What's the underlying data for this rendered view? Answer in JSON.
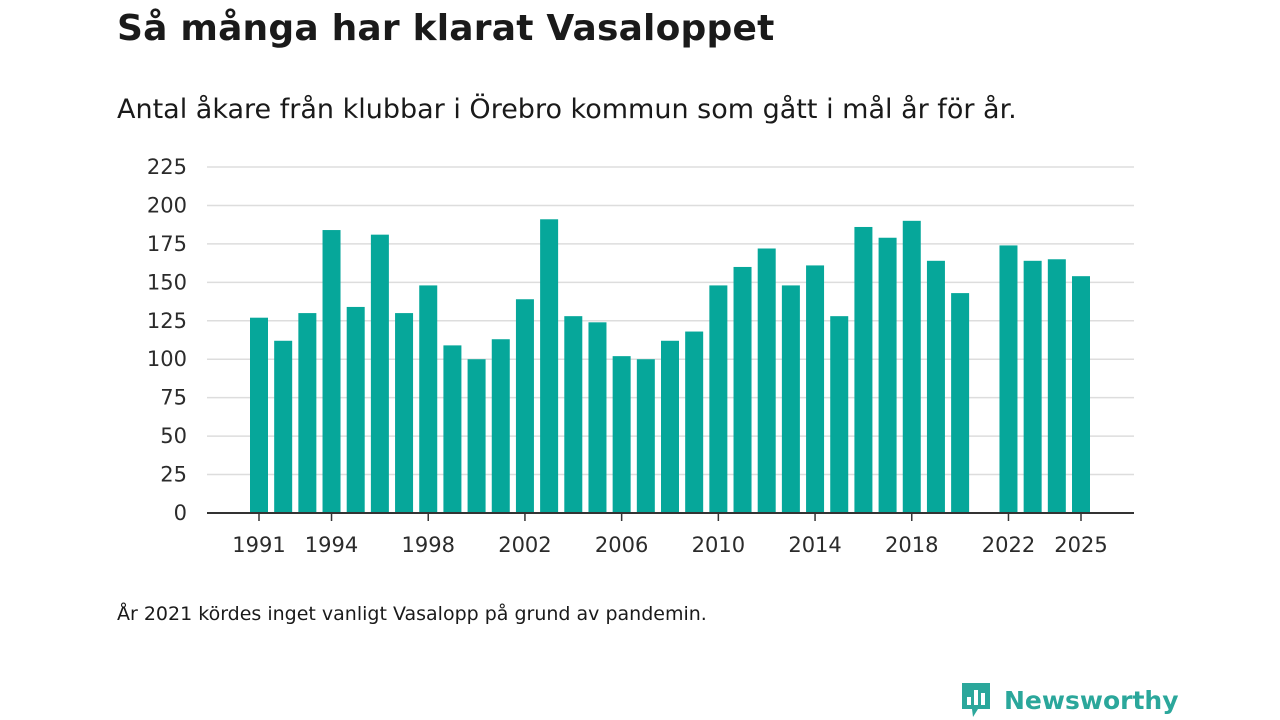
{
  "colors": {
    "bar": "#06a79a",
    "grid": "#dddddd",
    "axis": "#333333",
    "brand": "#2ba79b"
  },
  "header": {
    "title": "Så många har klarat Vasaloppet",
    "subtitle": "Antal åkare från klubbar i Örebro kommun som gått i mål år för år."
  },
  "footer": {
    "note": "År 2021 kördes inget vanligt Vasalopp på grund av pandemin.",
    "brand": "Newsworthy"
  },
  "chart_data": {
    "type": "bar",
    "title": "Så många har klarat Vasaloppet",
    "xlabel": "",
    "ylabel": "",
    "ylim": [
      0,
      225
    ],
    "yticks": [
      0,
      25,
      50,
      75,
      100,
      125,
      150,
      175,
      200,
      225
    ],
    "xticks": [
      1991,
      1994,
      1998,
      2002,
      2006,
      2010,
      2014,
      2018,
      2022,
      2025
    ],
    "xrange": [
      1991,
      2025
    ],
    "categories": [
      1991,
      1992,
      1993,
      1994,
      1995,
      1996,
      1997,
      1998,
      1999,
      2000,
      2001,
      2002,
      2003,
      2004,
      2005,
      2006,
      2007,
      2008,
      2009,
      2010,
      2011,
      2012,
      2013,
      2014,
      2015,
      2016,
      2017,
      2018,
      2019,
      2020,
      2021,
      2022,
      2023,
      2024,
      2025
    ],
    "values": [
      127,
      112,
      130,
      184,
      134,
      181,
      130,
      148,
      109,
      100,
      113,
      139,
      191,
      128,
      124,
      102,
      100,
      112,
      118,
      148,
      160,
      172,
      148,
      161,
      128,
      186,
      179,
      190,
      164,
      143,
      null,
      174,
      164,
      165,
      154
    ],
    "grid": true,
    "legend": "none"
  }
}
